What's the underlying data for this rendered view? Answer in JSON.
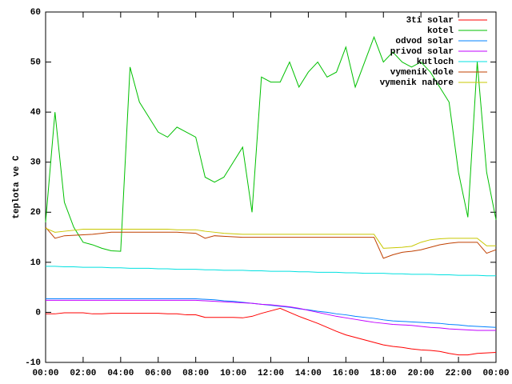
{
  "chart_data": {
    "type": "line",
    "ylabel": "teplota ve C",
    "x": [
      0,
      0.5,
      1,
      1.5,
      2,
      2.5,
      3,
      3.5,
      4,
      4.5,
      5,
      5.5,
      6,
      6.5,
      7,
      7.5,
      8,
      8.5,
      9,
      9.5,
      10,
      10.5,
      11,
      11.5,
      12,
      12.5,
      13,
      13.5,
      14,
      14.5,
      15,
      15.5,
      16,
      16.5,
      17,
      17.5,
      18,
      18.5,
      19,
      19.5,
      20,
      20.5,
      21,
      21.5,
      22,
      22.5,
      23,
      23.5,
      24
    ],
    "xlim": [
      0,
      24
    ],
    "xticks": [
      {
        "value": 0,
        "label": "00:00"
      },
      {
        "value": 2,
        "label": "02:00"
      },
      {
        "value": 4,
        "label": "04:00"
      },
      {
        "value": 6,
        "label": "06:00"
      },
      {
        "value": 8,
        "label": "08:00"
      },
      {
        "value": 10,
        "label": "10:00"
      },
      {
        "value": 12,
        "label": "12:00"
      },
      {
        "value": 14,
        "label": "14:00"
      },
      {
        "value": 16,
        "label": "16:00"
      },
      {
        "value": 18,
        "label": "18:00"
      },
      {
        "value": 20,
        "label": "20:00"
      },
      {
        "value": 22,
        "label": "22:00"
      },
      {
        "value": 24,
        "label": "00:00"
      }
    ],
    "ylim": [
      -10,
      60
    ],
    "yticks": [
      -10,
      0,
      10,
      20,
      30,
      40,
      50,
      60
    ],
    "legend": "top-right",
    "series": [
      {
        "name": "3ti solar",
        "color": "#ff0000",
        "values": [
          -0.3,
          -0.3,
          -0.1,
          -0.1,
          -0.1,
          -0.3,
          -0.3,
          -0.2,
          -0.2,
          -0.2,
          -0.2,
          -0.2,
          -0.2,
          -0.3,
          -0.3,
          -0.5,
          -0.5,
          -1,
          -1,
          -1,
          -1,
          -1.1,
          -0.8,
          -0.2,
          0.3,
          0.8,
          0,
          -0.8,
          -1.5,
          -2.2,
          -3,
          -3.8,
          -4.5,
          -5,
          -5.5,
          -6,
          -6.5,
          -6.8,
          -7,
          -7.3,
          -7.5,
          -7.6,
          -7.8,
          -8.2,
          -8.5,
          -8.5,
          -8.2,
          -8.1,
          -8
        ]
      },
      {
        "name": "kotel",
        "color": "#00c000",
        "values": [
          18,
          40,
          22,
          17,
          14,
          13.5,
          12.8,
          12.3,
          12.2,
          49,
          42,
          39,
          36,
          35,
          37,
          36,
          35,
          27,
          26,
          27,
          30,
          33,
          20,
          47,
          46,
          46,
          50,
          45,
          48,
          50,
          47,
          48,
          53,
          45,
          50,
          55,
          50,
          52,
          50,
          49,
          50,
          48,
          45,
          42,
          28,
          19,
          50,
          28,
          18.5
        ]
      },
      {
        "name": "odvod solar",
        "color": "#0080ff",
        "values": [
          2.7,
          2.7,
          2.7,
          2.7,
          2.7,
          2.7,
          2.7,
          2.7,
          2.7,
          2.7,
          2.7,
          2.7,
          2.7,
          2.7,
          2.7,
          2.7,
          2.7,
          2.6,
          2.5,
          2.3,
          2.2,
          2,
          1.8,
          1.6,
          1.4,
          1.2,
          1,
          0.7,
          0.5,
          0.2,
          0,
          -0.3,
          -0.5,
          -0.8,
          -1,
          -1.2,
          -1.5,
          -1.7,
          -1.8,
          -1.9,
          -2,
          -2.1,
          -2.2,
          -2.4,
          -2.5,
          -2.7,
          -2.8,
          -2.9,
          -3
        ]
      },
      {
        "name": "privod solar",
        "color": "#c000ff",
        "values": [
          2.4,
          2.4,
          2.4,
          2.4,
          2.4,
          2.4,
          2.4,
          2.4,
          2.4,
          2.4,
          2.4,
          2.4,
          2.4,
          2.4,
          2.4,
          2.4,
          2.4,
          2.3,
          2.2,
          2.1,
          2,
          1.9,
          1.8,
          1.6,
          1.5,
          1.3,
          1.1,
          0.8,
          0.4,
          0,
          -0.4,
          -0.8,
          -1.1,
          -1.4,
          -1.7,
          -2,
          -2.2,
          -2.4,
          -2.5,
          -2.6,
          -2.8,
          -3,
          -3.1,
          -3.3,
          -3.4,
          -3.5,
          -3.6,
          -3.6,
          -3.6
        ]
      },
      {
        "name": "kutloch",
        "color": "#00e0e0",
        "values": [
          9.2,
          9.2,
          9.1,
          9.1,
          9.0,
          9.0,
          9.0,
          8.9,
          8.9,
          8.8,
          8.8,
          8.8,
          8.7,
          8.7,
          8.6,
          8.6,
          8.6,
          8.5,
          8.5,
          8.4,
          8.4,
          8.4,
          8.3,
          8.3,
          8.2,
          8.2,
          8.2,
          8.1,
          8.1,
          8.0,
          8.0,
          8.0,
          7.9,
          7.9,
          7.8,
          7.8,
          7.8,
          7.7,
          7.7,
          7.6,
          7.6,
          7.6,
          7.5,
          7.5,
          7.4,
          7.4,
          7.4,
          7.3,
          7.3
        ]
      },
      {
        "name": "vymenik dole",
        "color": "#c04000",
        "values": [
          17,
          14.8,
          15.3,
          15.4,
          15.5,
          15.6,
          15.8,
          16,
          16,
          16,
          16,
          16,
          16,
          16,
          16,
          15.9,
          15.8,
          14.8,
          15.3,
          15.2,
          15.1,
          15,
          15,
          15,
          15,
          15,
          15,
          15,
          15,
          15,
          15,
          15,
          15,
          15,
          15,
          15,
          10.8,
          11.5,
          12,
          12.2,
          12.5,
          13,
          13.5,
          13.8,
          14,
          14,
          14,
          11.8,
          12.5
        ]
      },
      {
        "name": "vymenik nahore",
        "color": "#c8c800",
        "values": [
          16.8,
          16,
          16.2,
          16.4,
          16.6,
          16.6,
          16.6,
          16.6,
          16.6,
          16.6,
          16.6,
          16.6,
          16.6,
          16.6,
          16.5,
          16.5,
          16.5,
          16.2,
          16,
          15.8,
          15.7,
          15.6,
          15.6,
          15.6,
          15.6,
          15.6,
          15.6,
          15.6,
          15.6,
          15.6,
          15.6,
          15.6,
          15.6,
          15.6,
          15.6,
          15.6,
          12.8,
          12.9,
          13,
          13.2,
          14,
          14.5,
          14.7,
          14.8,
          14.8,
          14.8,
          14.8,
          13.3,
          13.3
        ]
      }
    ]
  }
}
